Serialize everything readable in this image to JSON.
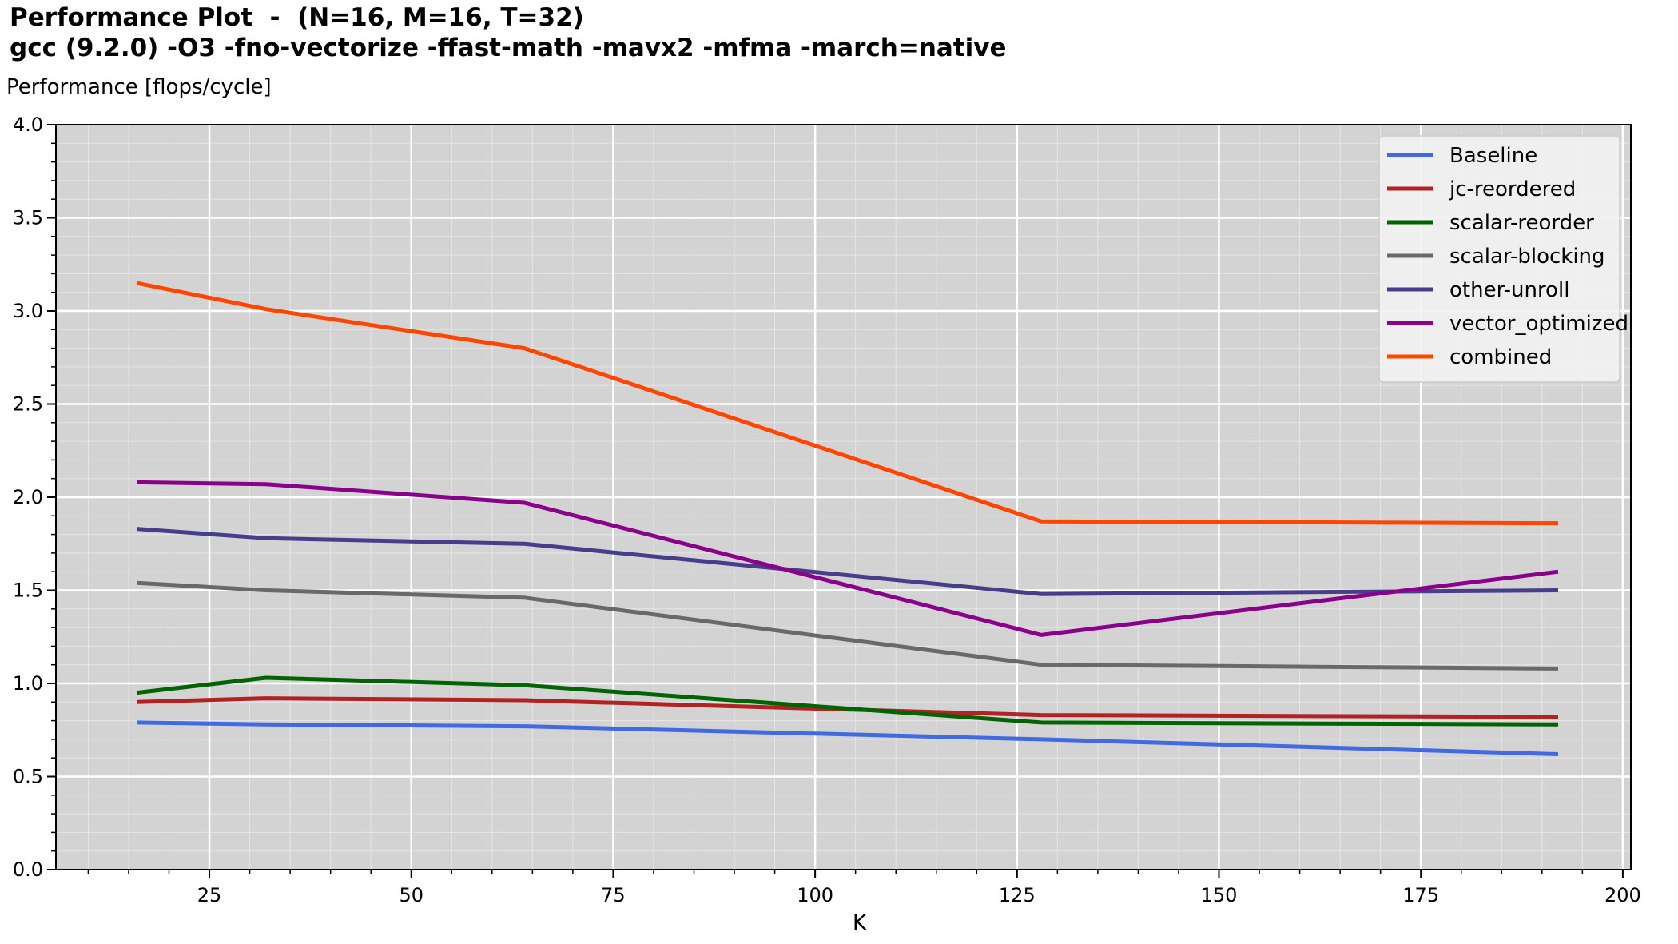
{
  "chart_data": {
    "type": "line",
    "title": "Performance Plot  -  (N=16, M=16, T=32)",
    "subtitle": "gcc (9.2.0) -O3 -fno-vectorize -ffast-math -mavx2 -mfma -march=native",
    "xlabel": "K",
    "ylabel": "Performance [flops/cycle]",
    "xlim": [
      6,
      201
    ],
    "ylim": [
      0,
      4.0
    ],
    "xticks": [
      25,
      50,
      75,
      100,
      125,
      150,
      175,
      200
    ],
    "yticks": [
      "0.0",
      "0.5",
      "1.0",
      "1.5",
      "2.0",
      "2.5",
      "3.0",
      "3.5",
      "4.0"
    ],
    "grid": true,
    "legend_position": "top-right",
    "x": [
      16,
      32,
      64,
      128,
      192
    ],
    "series": [
      {
        "name": "Baseline",
        "color": "#4169e1",
        "values": [
          0.79,
          0.78,
          0.77,
          0.7,
          0.62
        ]
      },
      {
        "name": "jc-reordered",
        "color": "#b22222",
        "values": [
          0.9,
          0.92,
          0.91,
          0.83,
          0.82
        ]
      },
      {
        "name": "scalar-reorder",
        "color": "#006400",
        "values": [
          0.95,
          1.03,
          0.99,
          0.79,
          0.78
        ]
      },
      {
        "name": "scalar-blocking",
        "color": "#696969",
        "values": [
          1.54,
          1.5,
          1.46,
          1.1,
          1.08
        ]
      },
      {
        "name": "other-unroll",
        "color": "#483d8b",
        "values": [
          1.83,
          1.78,
          1.75,
          1.48,
          1.5
        ]
      },
      {
        "name": "vector_optimized",
        "color": "#8b008b",
        "values": [
          2.08,
          2.07,
          1.97,
          1.26,
          1.6
        ]
      },
      {
        "name": "combined",
        "color": "#ff4500",
        "values": [
          3.15,
          3.01,
          2.8,
          1.87,
          1.86
        ]
      }
    ]
  }
}
